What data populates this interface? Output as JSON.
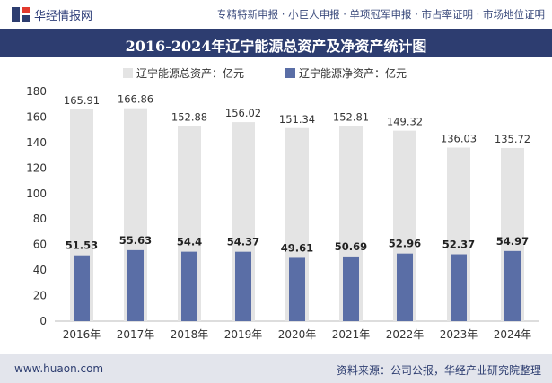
{
  "header": {
    "brand": "华经情报网",
    "services": "专精特新申报 · 小巨人申报 · 单项冠军申报 · 市占率证明 · 市场地位证明"
  },
  "footer": {
    "site": "www.huaon.com",
    "source": "资料来源：公司公报，华经产业研究院整理"
  },
  "colors": {
    "header_bg": "#2d3d70",
    "total_bar": "#e4e4e4",
    "net_bar": "#5a6ea6"
  },
  "chart_data": {
    "type": "bar",
    "title": "2016-2024年辽宁能源总资产及净资产统计图",
    "categories": [
      "2016年",
      "2017年",
      "2018年",
      "2019年",
      "2020年",
      "2021年",
      "2022年",
      "2023年",
      "2024年"
    ],
    "series": [
      {
        "name": "辽宁能源总资产：亿元",
        "values": [
          165.91,
          166.86,
          152.88,
          156.02,
          151.34,
          152.81,
          149.32,
          136.03,
          135.72
        ],
        "labels": [
          "165.91",
          "166.86",
          "152.88",
          "156.02",
          "151.34",
          "152.81",
          "149.32",
          "136.03",
          "135.72"
        ]
      },
      {
        "name": "辽宁能源净资产：亿元",
        "values": [
          51.53,
          55.63,
          54.4,
          54.37,
          49.61,
          50.69,
          52.96,
          52.37,
          54.97
        ],
        "labels": [
          "51.53",
          "55.63",
          "54.4",
          "54.37",
          "49.61",
          "50.69",
          "52.96",
          "52.37",
          "54.97"
        ]
      }
    ],
    "yticks": [
      "0",
      "20",
      "40",
      "60",
      "80",
      "100",
      "120",
      "140",
      "160",
      "180"
    ],
    "ylim": [
      0,
      180
    ],
    "legend_position": "top"
  }
}
